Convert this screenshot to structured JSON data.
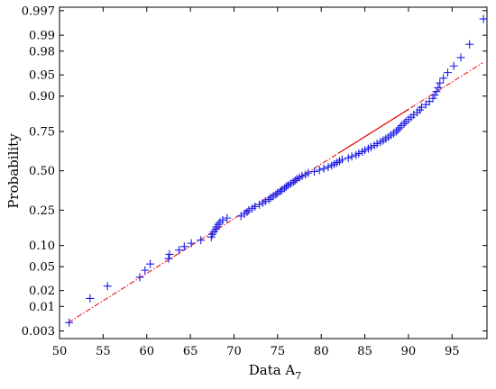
{
  "chart_data": {
    "type": "scatter",
    "title": "",
    "xlabel": "Data A",
    "xlabel_subscript": "7",
    "ylabel": "Probability",
    "xlim": [
      50,
      99
    ],
    "x_ticks": [
      50,
      55,
      60,
      65,
      70,
      75,
      80,
      85,
      90,
      95
    ],
    "y_scale": "normal-probability",
    "y_ticks": [
      0.003,
      0.01,
      0.02,
      0.05,
      0.1,
      0.25,
      0.5,
      0.75,
      0.9,
      0.95,
      0.98,
      0.99,
      0.997
    ],
    "y_tick_labels": [
      "0.003",
      "0.01",
      "0.02",
      "0.05",
      "0.10",
      "0.25",
      "0.50",
      "0.75",
      "0.90",
      "0.95",
      "0.98",
      "0.99",
      "0.997"
    ],
    "grid": false,
    "marker": "+",
    "marker_color": "#1a1ae6",
    "fit_line_color": "#e60000",
    "fit_line": {
      "x": [
        51,
        98.5
      ],
      "p": [
        0.0046,
        0.968
      ],
      "solid_range": [
        82,
        90
      ]
    },
    "points": [
      [
        51.1,
        0.0046
      ],
      [
        53.5,
        0.0143
      ],
      [
        55.5,
        0.024
      ],
      [
        59.2,
        0.034
      ],
      [
        59.8,
        0.044
      ],
      [
        60.4,
        0.055
      ],
      [
        62.5,
        0.066
      ],
      [
        62.6,
        0.076
      ],
      [
        63.7,
        0.087
      ],
      [
        64.3,
        0.097
      ],
      [
        65.1,
        0.107
      ],
      [
        66.2,
        0.117
      ],
      [
        67.4,
        0.128
      ],
      [
        67.5,
        0.138
      ],
      [
        67.7,
        0.148
      ],
      [
        67.9,
        0.158
      ],
      [
        68.0,
        0.168
      ],
      [
        68.2,
        0.179
      ],
      [
        68.4,
        0.189
      ],
      [
        68.7,
        0.199
      ],
      [
        69.2,
        0.209
      ],
      [
        70.8,
        0.219
      ],
      [
        71.2,
        0.23
      ],
      [
        71.5,
        0.24
      ],
      [
        71.7,
        0.25
      ],
      [
        72.1,
        0.26
      ],
      [
        72.4,
        0.27
      ],
      [
        72.9,
        0.281
      ],
      [
        73.3,
        0.291
      ],
      [
        73.6,
        0.301
      ],
      [
        74.0,
        0.311
      ],
      [
        74.2,
        0.321
      ],
      [
        74.5,
        0.332
      ],
      [
        74.8,
        0.342
      ],
      [
        75.0,
        0.352
      ],
      [
        75.3,
        0.362
      ],
      [
        75.5,
        0.372
      ],
      [
        75.8,
        0.383
      ],
      [
        76.0,
        0.393
      ],
      [
        76.2,
        0.403
      ],
      [
        76.5,
        0.413
      ],
      [
        76.8,
        0.423
      ],
      [
        77.0,
        0.434
      ],
      [
        77.2,
        0.444
      ],
      [
        77.5,
        0.454
      ],
      [
        77.8,
        0.464
      ],
      [
        78.2,
        0.474
      ],
      [
        78.5,
        0.485
      ],
      [
        79.2,
        0.495
      ],
      [
        79.8,
        0.505
      ],
      [
        80.3,
        0.515
      ],
      [
        80.8,
        0.526
      ],
      [
        81.2,
        0.536
      ],
      [
        81.5,
        0.546
      ],
      [
        81.8,
        0.556
      ],
      [
        82.1,
        0.566
      ],
      [
        82.4,
        0.577
      ],
      [
        83.1,
        0.587
      ],
      [
        83.5,
        0.597
      ],
      [
        84.0,
        0.607
      ],
      [
        84.3,
        0.617
      ],
      [
        84.7,
        0.628
      ],
      [
        85.0,
        0.638
      ],
      [
        85.4,
        0.648
      ],
      [
        85.7,
        0.658
      ],
      [
        86.1,
        0.668
      ],
      [
        86.4,
        0.679
      ],
      [
        86.8,
        0.689
      ],
      [
        87.1,
        0.699
      ],
      [
        87.4,
        0.709
      ],
      [
        87.7,
        0.719
      ],
      [
        88.0,
        0.73
      ],
      [
        88.3,
        0.74
      ],
      [
        88.6,
        0.75
      ],
      [
        88.8,
        0.76
      ],
      [
        89.0,
        0.77
      ],
      [
        89.2,
        0.781
      ],
      [
        89.5,
        0.791
      ],
      [
        89.7,
        0.801
      ],
      [
        90.0,
        0.811
      ],
      [
        90.3,
        0.821
      ],
      [
        90.6,
        0.832
      ],
      [
        91.0,
        0.842
      ],
      [
        91.3,
        0.852
      ],
      [
        91.5,
        0.862
      ],
      [
        92.0,
        0.872
      ],
      [
        92.4,
        0.883
      ],
      [
        92.8,
        0.893
      ],
      [
        93.0,
        0.903
      ],
      [
        93.2,
        0.913
      ],
      [
        93.4,
        0.923
      ],
      [
        93.6,
        0.934
      ],
      [
        94.0,
        0.944
      ],
      [
        94.5,
        0.954
      ],
      [
        95.2,
        0.964
      ],
      [
        96.0,
        0.974
      ],
      [
        97.0,
        0.985
      ],
      [
        98.6,
        0.9954
      ]
    ]
  }
}
